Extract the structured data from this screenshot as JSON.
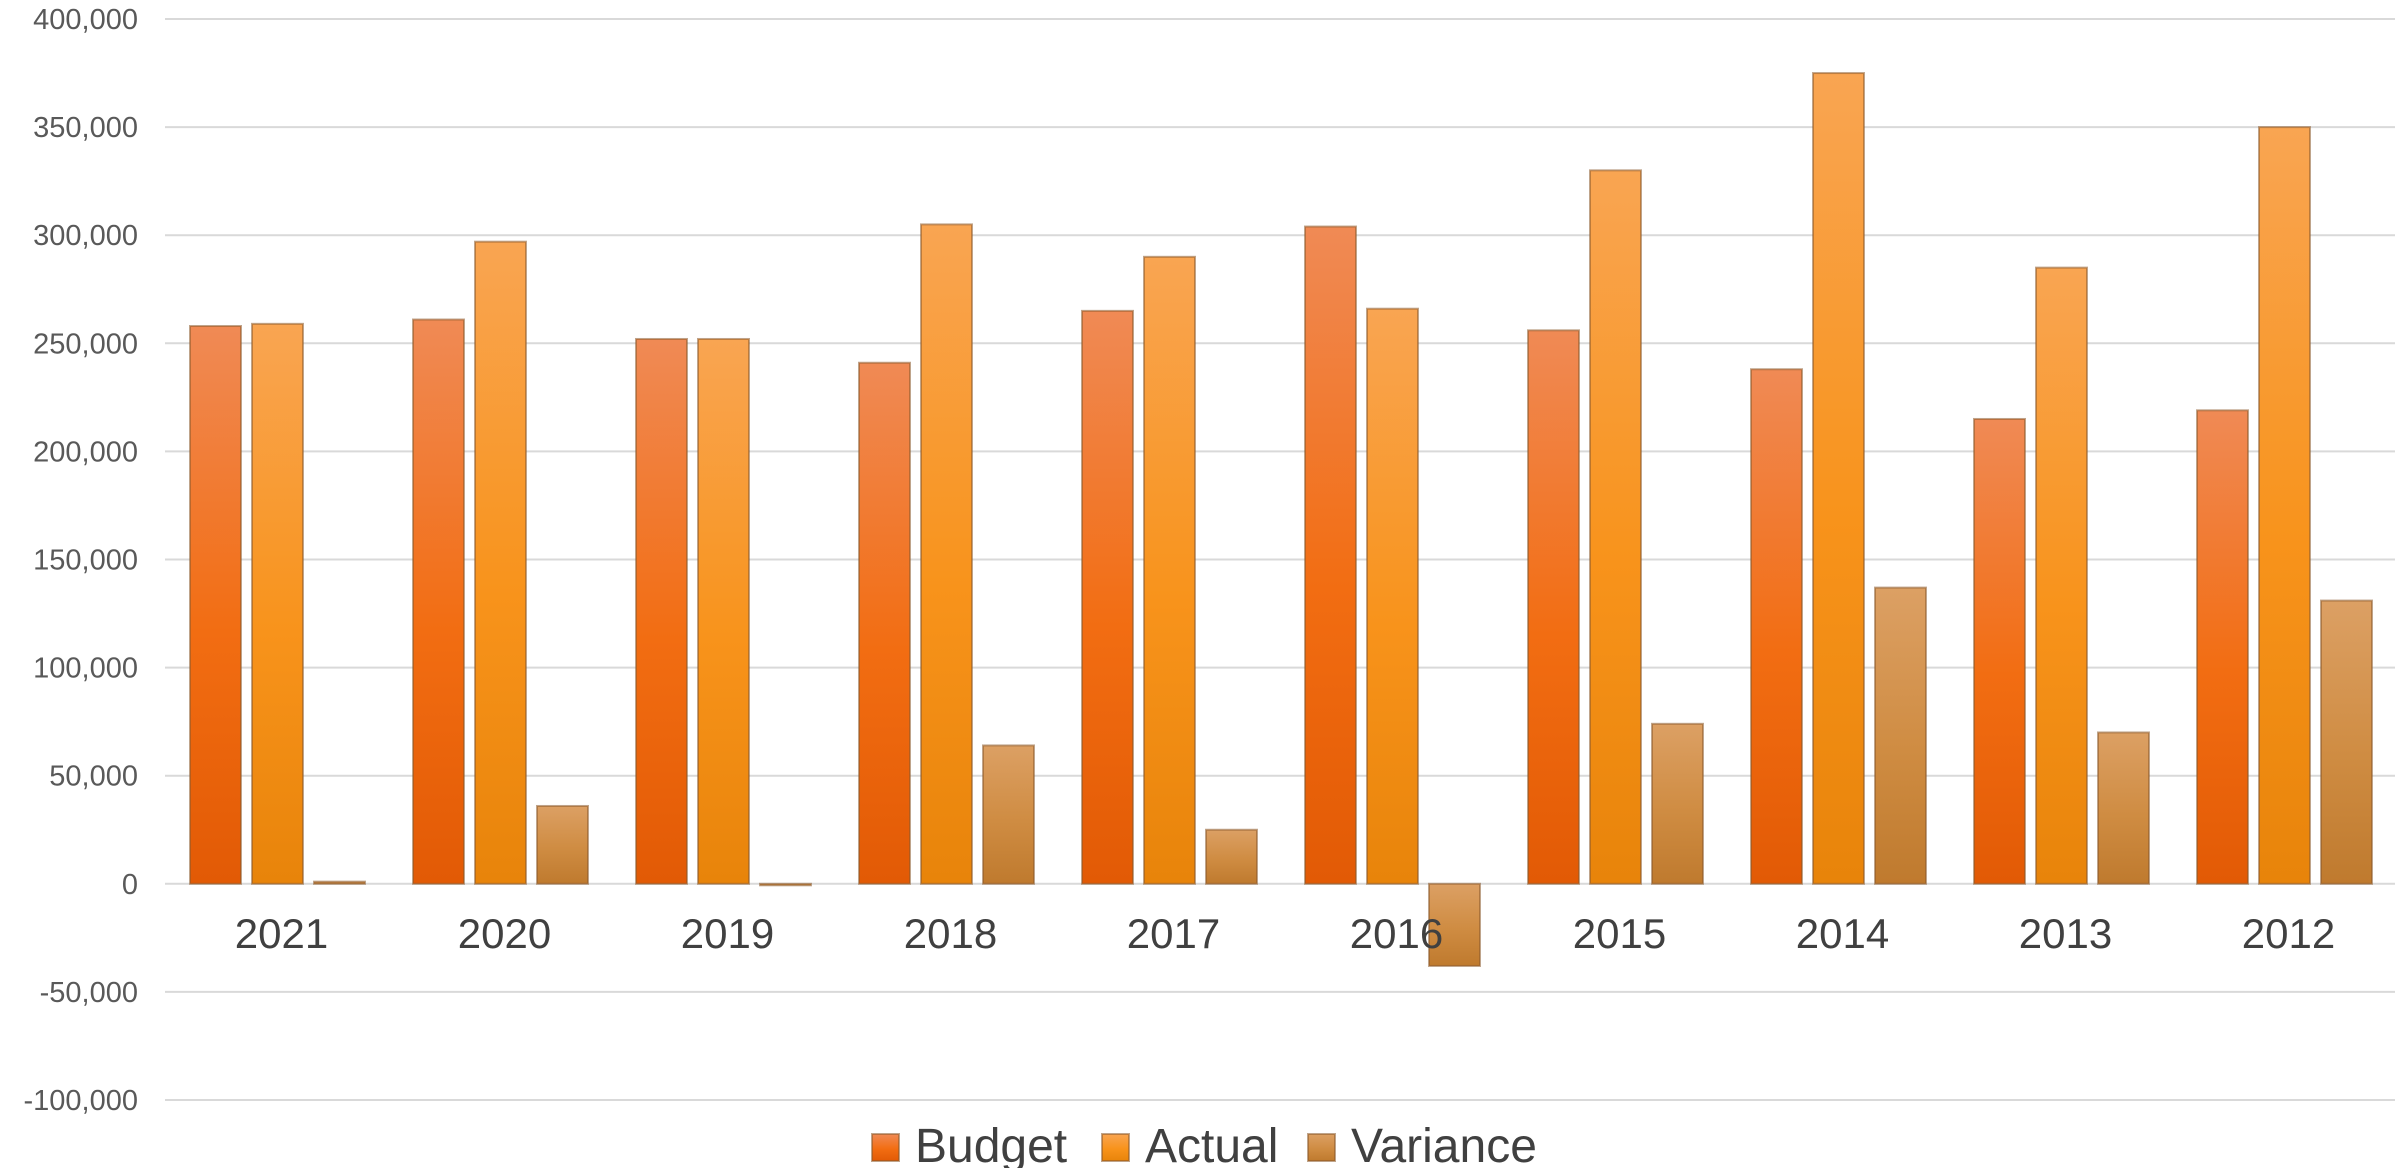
{
  "chart_data": {
    "type": "bar",
    "title": "",
    "xlabel": "",
    "ylabel": "",
    "categories": [
      "2021",
      "2020",
      "2019",
      "2018",
      "2017",
      "2016",
      "2015",
      "2014",
      "2013",
      "2012"
    ],
    "series": [
      {
        "name": "Budget",
        "values": [
          258000,
          261000,
          252000,
          241000,
          265000,
          304000,
          256000,
          238000,
          215000,
          219000
        ]
      },
      {
        "name": "Actual",
        "values": [
          259000,
          297000,
          252000,
          305000,
          290000,
          266000,
          330000,
          375000,
          285000,
          350000
        ]
      },
      {
        "name": "Variance",
        "values": [
          1000,
          36000,
          0,
          64000,
          25000,
          -38000,
          74000,
          137000,
          70000,
          131000
        ]
      }
    ],
    "ylim": [
      -100000,
      400000
    ],
    "y_ticks": [
      "-100,000",
      "-50,000",
      "0",
      "50,000",
      "100,000",
      "150,000",
      "200,000",
      "250,000",
      "300,000",
      "350,000",
      "400,000"
    ],
    "grid": true,
    "legend_position": "bottom",
    "colors": {
      "Budget": [
        "#f08a55",
        "#f26d12",
        "#e25a05"
      ],
      "Actual": [
        "#f9a552",
        "#f8931b",
        "#e8840a"
      ],
      "Variance": [
        "#dca064",
        "#cf8c42",
        "#bf7a2e"
      ]
    }
  }
}
